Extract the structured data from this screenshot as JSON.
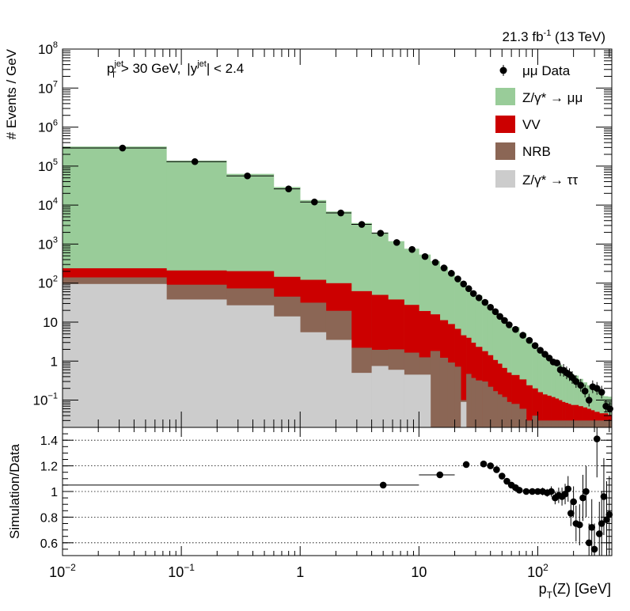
{
  "header": {
    "lumi_value": "21.3",
    "lumi_unit": "fb",
    "lumi_exp": "-1",
    "energy": "(13 TeV)"
  },
  "cut_label": {
    "pt_sym": "p",
    "pt_sup": "jet",
    "pt_sub": "T",
    "pt_cut": "> 30 GeV,",
    "y_open": "|y",
    "y_sup": "jet",
    "y_cut": "| < 2.4"
  },
  "legend": {
    "data": "μμ Data",
    "zmm": "Z/γ* → μμ",
    "vv": "VV",
    "nrb": "NRB",
    "ztt": "Z/γ* → ττ"
  },
  "colors": {
    "zmm": "#99cc99",
    "vv": "#cc0000",
    "nrb": "#8b6655",
    "ztt": "#cccccc",
    "data": "#000000"
  },
  "chart_data": [
    {
      "type": "bar",
      "stacked": true,
      "log_x": true,
      "log_y": true,
      "ylabel": "# Events / GeV",
      "xlim": [
        0.01,
        420
      ],
      "ylim": [
        0.02,
        100000000
      ],
      "yticks": [
        {
          "value": 0.1,
          "label": "10",
          "sup": "−1"
        },
        {
          "value": 1,
          "label": "1",
          "sup": ""
        },
        {
          "value": 10,
          "label": "10",
          "sup": ""
        },
        {
          "value": 100,
          "label": "10",
          "sup": "2"
        },
        {
          "value": 1000,
          "label": "10",
          "sup": "3"
        },
        {
          "value": 10000,
          "label": "10",
          "sup": "4"
        },
        {
          "value": 100000,
          "label": "10",
          "sup": "5"
        },
        {
          "value": 1000000,
          "label": "10",
          "sup": "6"
        },
        {
          "value": 10000000,
          "label": "10",
          "sup": "7"
        },
        {
          "value": 100000000,
          "label": "10",
          "sup": "8"
        }
      ],
      "bin_edges": [
        0.01,
        0.075,
        0.24,
        0.6,
        1.0,
        1.65,
        2.7,
        4.0,
        5.5,
        7.5,
        10,
        12.5,
        15,
        17.5,
        20,
        22.5,
        25,
        27.5,
        30,
        34,
        38,
        42,
        46,
        50,
        55,
        60,
        70,
        80,
        90,
        100,
        110,
        120,
        130,
        140,
        150,
        160,
        170,
        180,
        190,
        200,
        220,
        240,
        260,
        280,
        300,
        330,
        360,
        390,
        420
      ],
      "series": [
        {
          "name": "ztt",
          "values": [
            95,
            38,
            27,
            14,
            5.5,
            3.5,
            0.5,
            0.75,
            0.6,
            0.45,
            0.45,
            0.02,
            0.02,
            0.02,
            0.02,
            0.09,
            0.02,
            0.02,
            0.02,
            0.02,
            0.02,
            0.02,
            0.02,
            0.02,
            0.02,
            0.02,
            0.02,
            0.02,
            0.02,
            0.02,
            0.02,
            0.02,
            0.02,
            0.02,
            0.02,
            0.02,
            0.02,
            0.02,
            0.02,
            0.02,
            0.02,
            0.02,
            0.02,
            0.02,
            0.02,
            0.02,
            0.02,
            0.02
          ]
        },
        {
          "name": "nrb",
          "values": [
            45,
            53,
            46,
            31,
            26,
            16,
            1.7,
            1.2,
            1.4,
            1.2,
            0.8,
            1.8,
            1.2,
            0.9,
            0.7,
            0.01,
            0.45,
            0.35,
            0.3,
            0.28,
            0.2,
            0.15,
            0.12,
            0.1,
            0.07,
            0.06,
            0.04,
            0.01,
            0.02,
            0.01,
            0.01,
            0.01,
            0.01,
            0.01,
            0.01,
            0.01,
            0.01,
            0.01,
            0.01,
            0.01,
            0.01,
            0.01,
            0.01,
            0.01,
            0.01,
            0.01,
            0.01,
            0.01
          ]
        },
        {
          "name": "vv",
          "values": [
            100,
            120,
            130,
            100,
            90,
            80,
            60,
            48,
            36,
            26,
            18,
            14,
            10,
            8,
            6,
            4.5,
            3.5,
            2.6,
            2,
            1.5,
            1.2,
            0.9,
            0.72,
            0.55,
            0.42,
            0.36,
            0.28,
            0.21,
            0.16,
            0.13,
            0.11,
            0.1,
            0.09,
            0.08,
            0.07,
            0.06,
            0.055,
            0.05,
            0.045,
            0.045,
            0.04,
            0.035,
            0.03,
            0.025,
            0.02,
            0.016,
            0.016,
            0.012
          ]
        },
        {
          "name": "zmm",
          "values": [
            318000,
            138000,
            63000,
            29000,
            13300,
            6750,
            3410,
            1930,
            1150,
            735,
            520,
            350,
            250,
            180,
            132,
            99,
            76,
            59,
            46,
            35,
            26,
            20,
            15.4,
            12,
            9.2,
            7,
            4.9,
            3.5,
            2.5,
            1.9,
            1.5,
            1.2,
            0.98,
            0.82,
            0.7,
            0.6,
            0.52,
            0.45,
            0.4,
            0.35,
            0.28,
            0.22,
            0.18,
            0.15,
            0.12,
            0.1,
            0.08,
            0.08
          ]
        }
      ],
      "data_points": {
        "name": "data",
        "x": [
          0.032,
          0.13,
          0.36,
          0.8,
          1.32,
          2.2,
          3.3,
          4.75,
          6.5,
          8.75,
          11.25,
          13.75,
          16.25,
          18.75,
          21.25,
          23.75,
          26.25,
          28.75,
          32,
          36,
          40,
          44,
          48,
          52.5,
          57.5,
          65,
          75,
          85,
          95,
          105,
          115,
          125,
          135,
          145,
          155,
          165,
          175,
          185,
          195,
          210,
          230,
          250,
          270,
          290,
          315,
          345,
          375,
          405
        ],
        "y": [
          290000,
          130000,
          56000,
          26000,
          12000,
          6300,
          3200,
          1900,
          1100,
          730,
          480,
          340,
          245,
          178,
          128,
          95,
          72,
          54,
          42,
          32,
          24,
          18.5,
          14,
          11,
          8.5,
          6.5,
          4.6,
          3.4,
          2.5,
          1.9,
          1.5,
          1.2,
          0.95,
          0.9,
          0.6,
          0.58,
          0.5,
          0.45,
          0.38,
          0.3,
          0.24,
          0.17,
          0.1,
          0.22,
          0.2,
          0.16,
          0.07,
          0.06
        ],
        "x_err": [
          [
            0.01,
            0.075
          ],
          [
            0.075,
            0.24
          ],
          [
            0.24,
            0.6
          ],
          [
            0.6,
            1.0
          ],
          [
            1.0,
            1.65
          ],
          [
            1.65,
            2.7
          ],
          [
            2.7,
            4.0
          ],
          [
            4.0,
            5.5
          ]
        ]
      }
    },
    {
      "type": "scatter",
      "log_x": true,
      "ylabel": "Simulation/Data",
      "xlabel": "p_T(Z) [GeV]",
      "xlim": [
        0.01,
        420
      ],
      "ylim": [
        0.5,
        1.5
      ],
      "yticks": [
        0.6,
        0.8,
        1,
        1.2,
        1.4
      ],
      "ytick_labels": [
        "0.6",
        "0.8",
        "1",
        "1.2",
        "1.4"
      ],
      "xticks": [
        {
          "value": 0.01,
          "label": "10",
          "sup": "−2"
        },
        {
          "value": 0.1,
          "label": "10",
          "sup": "−1"
        },
        {
          "value": 1,
          "label": "1",
          "sup": ""
        },
        {
          "value": 10,
          "label": "10",
          "sup": ""
        },
        {
          "value": 100,
          "label": "10",
          "sup": "2"
        }
      ],
      "gridlines_y": [
        0.6,
        0.8,
        1.0,
        1.2,
        1.4
      ],
      "points": [
        {
          "x": 5,
          "y": 1.05,
          "xlo": 0.01,
          "xhi": 10,
          "err": 0
        },
        {
          "x": 15,
          "y": 1.13,
          "xlo": 10,
          "xhi": 20,
          "err": 0
        },
        {
          "x": 25,
          "y": 1.21,
          "err": 0
        },
        {
          "x": 35,
          "y": 1.215,
          "err": 0
        },
        {
          "x": 40,
          "y": 1.2,
          "err": 0
        },
        {
          "x": 45,
          "y": 1.17,
          "err": 0
        },
        {
          "x": 50,
          "y": 1.12,
          "err": 0.01
        },
        {
          "x": 55,
          "y": 1.08,
          "err": 0.01
        },
        {
          "x": 60,
          "y": 1.05,
          "err": 0.01
        },
        {
          "x": 65,
          "y": 1.03,
          "err": 0.01
        },
        {
          "x": 70,
          "y": 1.01,
          "err": 0.015
        },
        {
          "x": 80,
          "y": 1.0,
          "err": 0.02
        },
        {
          "x": 90,
          "y": 1.0,
          "err": 0.02
        },
        {
          "x": 100,
          "y": 1.0,
          "err": 0.02
        },
        {
          "x": 110,
          "y": 1.0,
          "err": 0.03
        },
        {
          "x": 120,
          "y": 0.99,
          "err": 0.03
        },
        {
          "x": 130,
          "y": 1.0,
          "err": 0.04
        },
        {
          "x": 140,
          "y": 0.95,
          "err": 0.05
        },
        {
          "x": 150,
          "y": 0.97,
          "err": 0.06
        },
        {
          "x": 160,
          "y": 0.96,
          "err": 0.07
        },
        {
          "x": 170,
          "y": 0.98,
          "err": 0.08
        },
        {
          "x": 180,
          "y": 1.02,
          "err": 0.1
        },
        {
          "x": 190,
          "y": 0.83,
          "err": 0.1
        },
        {
          "x": 200,
          "y": 0.92,
          "err": 0.12
        },
        {
          "x": 210,
          "y": 0.75,
          "err": 0.14
        },
        {
          "x": 225,
          "y": 0.74,
          "err": 0.16
        },
        {
          "x": 240,
          "y": 0.95,
          "err": 0.18
        },
        {
          "x": 255,
          "y": 1.0,
          "err": 0.2
        },
        {
          "x": 270,
          "y": 0.6,
          "err": 0.15
        },
        {
          "x": 285,
          "y": 0.72,
          "err": 0.22
        },
        {
          "x": 300,
          "y": 0.55,
          "err": 0.2
        },
        {
          "x": 315,
          "y": 1.41,
          "err": 0.3
        },
        {
          "x": 330,
          "y": 0.67,
          "err": 0.25
        },
        {
          "x": 345,
          "y": 0.75,
          "err": 0.25
        },
        {
          "x": 360,
          "y": 0.96,
          "err": 0.3
        },
        {
          "x": 380,
          "y": 0.78,
          "err": 0.3
        },
        {
          "x": 400,
          "y": 0.82,
          "err": 0.3
        }
      ]
    }
  ]
}
